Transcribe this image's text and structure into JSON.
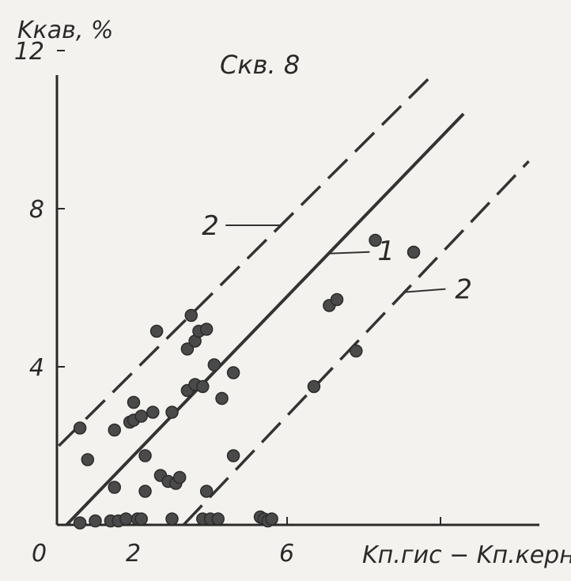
{
  "chart_data": {
    "type": "scatter",
    "title": "Скв. 8",
    "ylabel": "Kкав, %",
    "xlabel": "Kп.гис − Kп.керн, %",
    "origin_label": "0",
    "x_ticks": [
      {
        "value": 2,
        "label": "2"
      },
      {
        "value": 6,
        "label": "6"
      },
      {
        "value": 10,
        "label": ""
      }
    ],
    "y_ticks": [
      {
        "value": 4,
        "label": "4"
      },
      {
        "value": 8,
        "label": "8"
      },
      {
        "value": 12,
        "label": "12"
      }
    ],
    "xlim": [
      0,
      12.5
    ],
    "ylim": [
      0,
      12
    ],
    "grid": false,
    "lines": [
      {
        "label": "1",
        "style": "solid",
        "points": [
          [
            0.25,
            0
          ],
          [
            10.6,
            10.4
          ]
        ]
      },
      {
        "label": "2",
        "style": "dashed",
        "points": [
          [
            0.05,
            2.0
          ],
          [
            9.7,
            11.3
          ]
        ]
      },
      {
        "label": "2",
        "style": "dashed",
        "points": [
          [
            3.3,
            0
          ],
          [
            12.3,
            9.2
          ]
        ]
      }
    ],
    "annotations": [
      {
        "text": "2",
        "target_line": 1
      },
      {
        "text": "1",
        "target_line": 0
      },
      {
        "text": "2",
        "target_line": 2
      }
    ],
    "points": [
      [
        0.6,
        2.45
      ],
      [
        0.8,
        1.65
      ],
      [
        1.0,
        0.1
      ],
      [
        0.6,
        0.05
      ],
      [
        1.4,
        0.1
      ],
      [
        1.6,
        0.1
      ],
      [
        1.5,
        0.95
      ],
      [
        1.5,
        2.4
      ],
      [
        1.8,
        0.15
      ],
      [
        1.9,
        2.6
      ],
      [
        2.0,
        3.1
      ],
      [
        2.0,
        2.65
      ],
      [
        2.1,
        0.15
      ],
      [
        2.2,
        0.15
      ],
      [
        2.2,
        2.75
      ],
      [
        2.3,
        1.75
      ],
      [
        2.3,
        0.85
      ],
      [
        2.5,
        2.85
      ],
      [
        2.6,
        4.9
      ],
      [
        2.7,
        1.25
      ],
      [
        2.9,
        1.1
      ],
      [
        3.0,
        2.85
      ],
      [
        3.0,
        0.15
      ],
      [
        3.1,
        1.05
      ],
      [
        3.2,
        1.2
      ],
      [
        3.4,
        4.45
      ],
      [
        3.4,
        3.4
      ],
      [
        3.5,
        5.3
      ],
      [
        3.6,
        4.65
      ],
      [
        3.6,
        3.55
      ],
      [
        3.7,
        4.9
      ],
      [
        3.8,
        3.5
      ],
      [
        3.8,
        0.15
      ],
      [
        3.9,
        4.95
      ],
      [
        3.9,
        0.85
      ],
      [
        4.0,
        0.15
      ],
      [
        4.1,
        4.05
      ],
      [
        4.2,
        0.15
      ],
      [
        4.3,
        3.2
      ],
      [
        4.6,
        3.85
      ],
      [
        4.6,
        1.75
      ],
      [
        5.3,
        0.2
      ],
      [
        5.4,
        0.15
      ],
      [
        5.5,
        0.1
      ],
      [
        5.6,
        0.15
      ],
      [
        6.7,
        3.5
      ],
      [
        7.1,
        5.55
      ],
      [
        7.3,
        5.7
      ],
      [
        7.8,
        4.4
      ],
      [
        8.3,
        7.2
      ],
      [
        9.3,
        6.9
      ]
    ]
  }
}
